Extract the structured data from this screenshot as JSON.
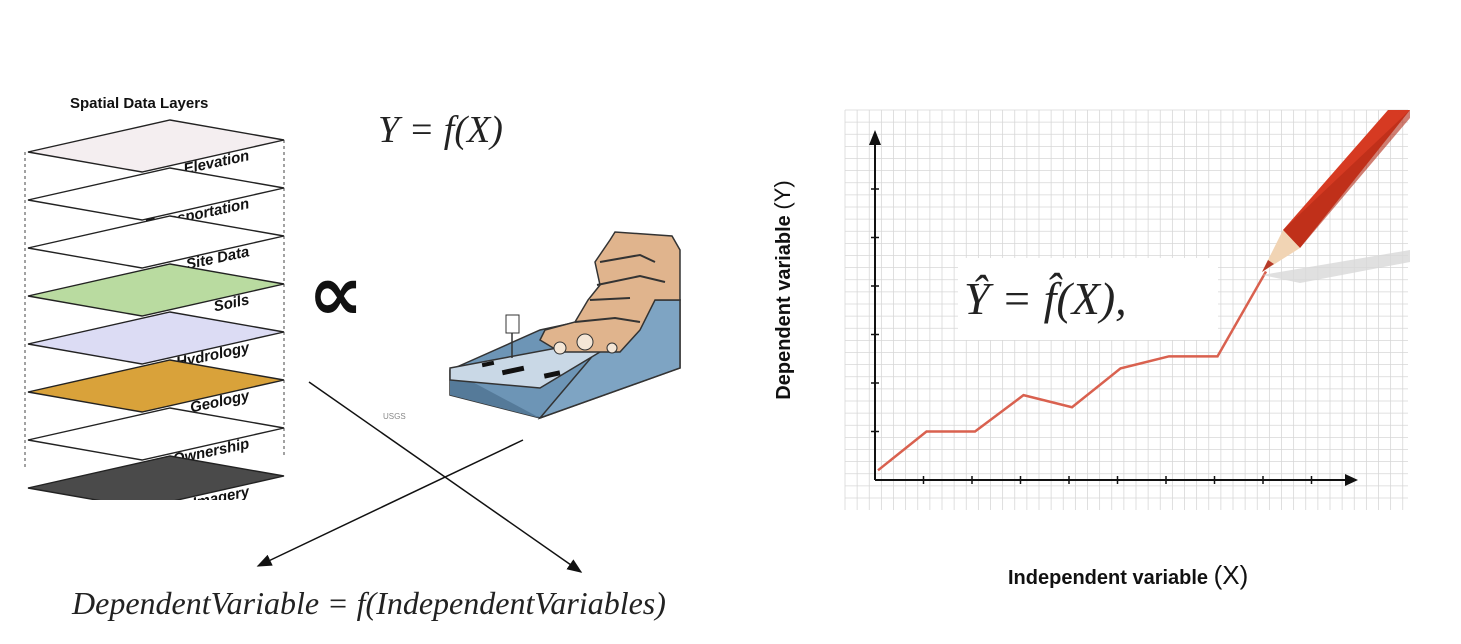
{
  "layers": {
    "title": "Spatial Data Layers",
    "items": [
      {
        "label": "Elevation",
        "fill": "#f4eef0"
      },
      {
        "label": "Transportation",
        "fill": "#ffffff"
      },
      {
        "label": "Site Data",
        "fill": "#ffffff"
      },
      {
        "label": "Soils",
        "fill": "#b9dba0"
      },
      {
        "label": "Hydrology",
        "fill": "#dcdcf4"
      },
      {
        "label": "Geology",
        "fill": "#d9a23a"
      },
      {
        "label": "Ownership",
        "fill": "#ffffff"
      },
      {
        "label": "Imagery",
        "fill": "#4a4a4a"
      }
    ]
  },
  "equations": {
    "top": "Y = f(X)",
    "proportional": "∝",
    "bottom": "DependentVariable = f(IndependentVariables)",
    "estimate": "Ŷ = f̂(X),"
  },
  "credit": "USGS",
  "graph": {
    "ylabel": "Dependent variable",
    "ylabel_var": "(Y)",
    "xlabel": "Independent variable",
    "xlabel_var": "(X)",
    "line_color": "#d9614f",
    "pencil_color": "#d63a22"
  },
  "chart_data": {
    "type": "line",
    "x": [
      0,
      1,
      2,
      3,
      4,
      5,
      6,
      7,
      8
    ],
    "y": [
      0.2,
      1.0,
      1.0,
      1.75,
      1.5,
      2.3,
      2.55,
      2.55,
      4.3
    ],
    "xlim": [
      -0.1,
      10
    ],
    "ylim": [
      0,
      7
    ],
    "grid": true
  }
}
